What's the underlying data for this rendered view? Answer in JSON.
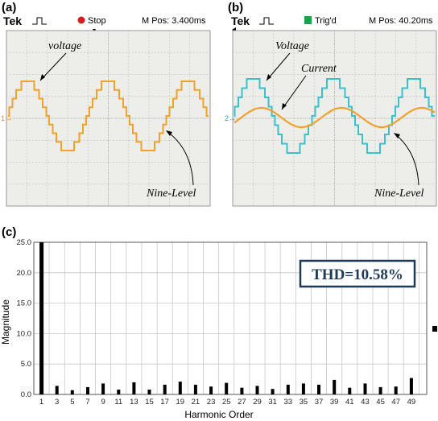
{
  "chart_data": [
    {
      "type": "line",
      "panel_label": "(a)",
      "scope": {
        "brand": "Tek",
        "status": "Stop",
        "mpos": "M Pos: 3.400ms",
        "status_color": "#d21f1f"
      },
      "series": [
        {
          "name": "voltage",
          "waveform": "nine-level staircase",
          "levels": 9,
          "cycles": 2.5,
          "color": "#f2a12a"
        }
      ],
      "annotations": [
        "voltage",
        "Nine-Level"
      ],
      "grid": true
    },
    {
      "type": "line",
      "panel_label": "(b)",
      "scope": {
        "brand": "Tek",
        "status": "Trig'd",
        "mpos": "M Pos: 40.20ms",
        "status_color": "#1aa34a"
      },
      "series": [
        {
          "name": "Voltage",
          "waveform": "nine-level staircase",
          "levels": 9,
          "cycles": 2.5,
          "color": "#3cc0cc"
        },
        {
          "name": "Current",
          "waveform": "sinusoid",
          "cycles": 2.5,
          "color": "#f2a12a"
        }
      ],
      "annotations": [
        "Voltage",
        "Current",
        "Nine-Level"
      ],
      "grid": true
    },
    {
      "type": "bar",
      "panel_label": "(c)",
      "categories": [
        "1",
        "3",
        "5",
        "7",
        "9",
        "11",
        "13",
        "15",
        "17",
        "19",
        "21",
        "23",
        "25",
        "27",
        "29",
        "31",
        "33",
        "35",
        "37",
        "39",
        "41",
        "43",
        "45",
        "47",
        "49"
      ],
      "values": [
        25.0,
        1.4,
        0.7,
        1.2,
        1.8,
        0.8,
        2.0,
        0.8,
        1.6,
        2.1,
        1.6,
        1.3,
        1.9,
        1.1,
        1.4,
        0.9,
        1.6,
        1.8,
        1.6,
        2.4,
        1.1,
        1.8,
        1.2,
        1.3,
        2.7
      ],
      "xlabel": "Harmonic Order",
      "ylabel": "Magnitude",
      "yticks": [
        "0.0",
        "5.0",
        "10.0",
        "15.0",
        "20.0",
        "25.0"
      ],
      "ylim": [
        0,
        25
      ],
      "annotation": "THD=10.58%",
      "grid": true,
      "bar_color": "#000000"
    }
  ]
}
